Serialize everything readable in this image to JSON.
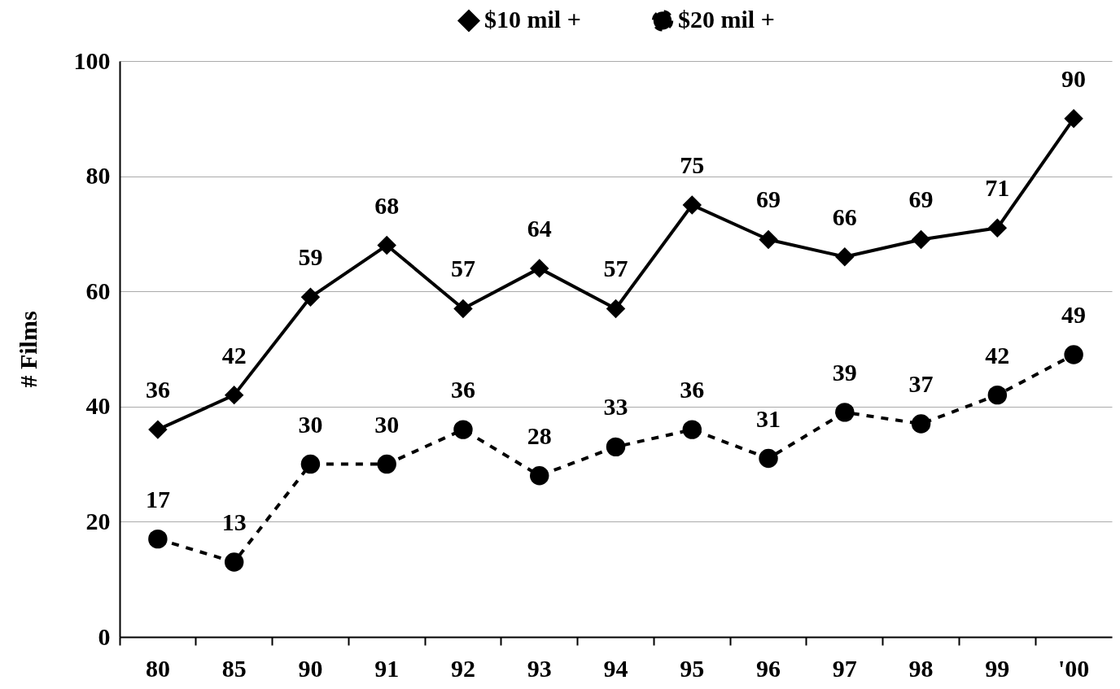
{
  "chart_data": {
    "type": "line",
    "ylabel": "# Films",
    "categories": [
      "80",
      "85",
      "90",
      "91",
      "92",
      "93",
      "94",
      "95",
      "96",
      "97",
      "98",
      "99",
      "'00"
    ],
    "series": [
      {
        "name": "$10 mil +",
        "color": "#000000",
        "marker": "diamond",
        "line_style": "solid",
        "values": [
          36,
          42,
          59,
          68,
          57,
          64,
          57,
          75,
          69,
          66,
          69,
          71,
          90
        ]
      },
      {
        "name": "$20 mil +",
        "color": "#000000",
        "marker": "circle",
        "line_style": "dashed",
        "values": [
          17,
          13,
          30,
          30,
          36,
          28,
          33,
          36,
          31,
          39,
          37,
          42,
          49
        ]
      }
    ],
    "ylim": [
      0,
      100
    ],
    "yticks": [
      0,
      20,
      40,
      60,
      80,
      100
    ],
    "grid": "y",
    "legend": "top",
    "data_labels": true
  }
}
